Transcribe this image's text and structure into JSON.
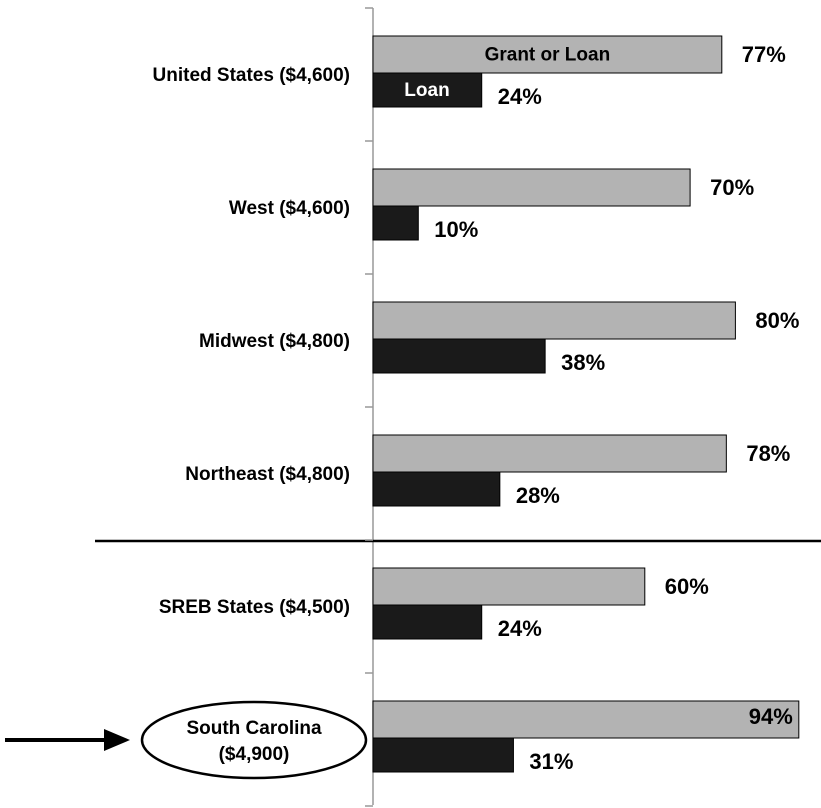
{
  "chart_data": {
    "type": "bar",
    "orientation": "horizontal",
    "categories": [
      "United States ($4,600)",
      "West ($4,600)",
      "Midwest ($4,800)",
      "Northeast ($4,800)",
      "SREB States ($4,500)",
      "South Carolina ($4,900)"
    ],
    "series": [
      {
        "name": "Grant or Loan",
        "color": "#b3b3b3",
        "values": [
          77,
          70,
          80,
          78,
          60,
          94
        ],
        "value_labels": [
          "77%",
          "70%",
          "80%",
          "78%",
          "60%",
          "94%"
        ]
      },
      {
        "name": "Loan",
        "color": "#1a1a1a",
        "values": [
          24,
          10,
          38,
          28,
          24,
          31
        ],
        "value_labels": [
          "24%",
          "10%",
          "38%",
          "28%",
          "24%",
          "31%"
        ]
      }
    ],
    "xlim": [
      0,
      100
    ]
  }
}
